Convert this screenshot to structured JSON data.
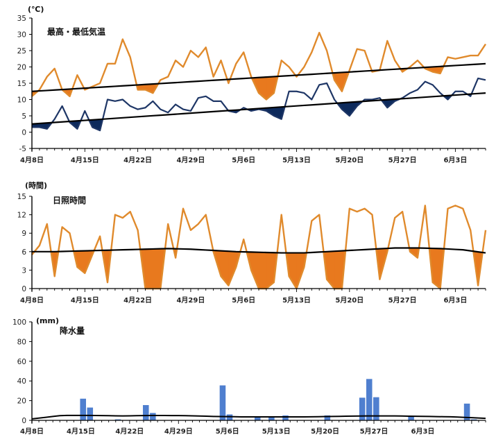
{
  "colors": {
    "high": "#e08a2c",
    "low": "#1e3666",
    "normal": "#000000",
    "above_fill": "#e8791e",
    "below_fill": "#0d2a5c",
    "precip": "#4f7fcf"
  },
  "chart_data": [
    {
      "type": "line",
      "title": "最高・最低気温",
      "ylabel": "(℃)",
      "ylim": [
        -5,
        35
      ],
      "yticks": [
        -5,
        0,
        5,
        10,
        15,
        20,
        25,
        30,
        35
      ],
      "x_start": "4月8日",
      "x_tick_labels": [
        "4月8日",
        "4月15日",
        "4月22日",
        "4月29日",
        "5月6日",
        "5月13日",
        "5月20日",
        "5月27日",
        "6月3日"
      ],
      "series": [
        {
          "values": [
            11,
            13,
            17,
            19.5,
            13,
            11,
            17.5,
            13,
            14,
            15,
            21,
            21,
            28.5,
            23,
            13,
            13,
            12,
            16,
            17,
            22,
            20,
            25,
            23,
            26,
            17,
            22,
            15,
            21,
            24.5,
            17,
            12,
            10,
            12,
            22,
            20,
            17,
            20,
            24.5,
            30.5,
            25,
            16,
            12.5,
            19,
            25.5,
            25,
            18.5,
            19,
            28,
            22,
            18.5,
            20,
            22,
            19.5,
            18.5,
            18,
            23,
            22.5,
            23,
            23.5,
            23.5,
            27
          ]
        },
        {
          "values": [
            1.5,
            1.5,
            1,
            4,
            8,
            3,
            1,
            6.5,
            1.5,
            0.5,
            10,
            9.5,
            10,
            8,
            7,
            7.5,
            9.5,
            7,
            6,
            8.5,
            7,
            6.5,
            10.5,
            11,
            9.5,
            9.5,
            6.5,
            6,
            7.5,
            6.5,
            7,
            6.5,
            5,
            4,
            12.5,
            12.5,
            12,
            10,
            14.5,
            15,
            10,
            7,
            5,
            8,
            10,
            10,
            10.5,
            7.5,
            9.5,
            10.5,
            12,
            13,
            15.5,
            14.5,
            12,
            10,
            12.5,
            12.5,
            11,
            16.5,
            16
          ]
        },
        {
          "values": [
            12.5,
            21
          ]
        },
        {
          "values": [
            2.5,
            12
          ]
        }
      ]
    },
    {
      "type": "line",
      "title": "日照時間",
      "ylabel": "(時間)",
      "ylim": [
        0,
        15
      ],
      "yticks": [
        0,
        3,
        6,
        9,
        12,
        15
      ],
      "x_tick_labels": [
        "4月8日",
        "4月15日",
        "4月22日",
        "4月29日",
        "5月6日",
        "5月13日",
        "5月20日",
        "5月27日",
        "6月3日"
      ],
      "series": [
        {
          "values": [
            5.5,
            7,
            10.5,
            2,
            10,
            9,
            3.5,
            2.5,
            5.5,
            8.5,
            1,
            12,
            11.5,
            12.5,
            9.5,
            0,
            0,
            0,
            10.5,
            5,
            13,
            9.5,
            10.5,
            12,
            6,
            2,
            0.5,
            3.5,
            8,
            3,
            0,
            0,
            1,
            12,
            2,
            0,
            3.5,
            11,
            12,
            1.5,
            0,
            0,
            13,
            12.5,
            13,
            12,
            1.5,
            6,
            11.5,
            12.5,
            6,
            5,
            13.5,
            1,
            0,
            13,
            13.5,
            13,
            9.5,
            0.5,
            9.5
          ]
        },
        {
          "values": [
            6,
            6,
            6.1,
            6.2,
            6.3,
            6.4,
            6.5,
            6.4,
            6.2,
            6,
            5.9,
            5.8,
            5.8,
            6,
            6.2,
            6.4,
            6.6,
            6.6,
            6.5,
            6.3,
            5.8
          ]
        }
      ]
    },
    {
      "type": "bar",
      "title": "降水量",
      "ylabel": "(mm)",
      "ylim": [
        0,
        100
      ],
      "yticks": [
        0,
        20,
        40,
        60,
        80,
        100
      ],
      "x_tick_labels": [
        "4月8日",
        "4月15日",
        "4月22日",
        "4月29日",
        "5月6日",
        "5月13日",
        "5月20日",
        "5月27日",
        "6月3日"
      ],
      "values": [
        0,
        0,
        0,
        0,
        0,
        0,
        0,
        22,
        13,
        0,
        0,
        0,
        1,
        0,
        0,
        0,
        15.5,
        7.5,
        0,
        0,
        0,
        0,
        0,
        0,
        0,
        0,
        0,
        35.5,
        6,
        0,
        0,
        0,
        3,
        0,
        3,
        0,
        5,
        0,
        0,
        0,
        0,
        0,
        5,
        0,
        0,
        0,
        0,
        23,
        42,
        23.5,
        0,
        0,
        0,
        0,
        4,
        0,
        0,
        0,
        0,
        0,
        0,
        0,
        17,
        1,
        0,
        0
      ],
      "normal_line": [
        1.5,
        5,
        5,
        4.5,
        5,
        4.8,
        4,
        3.5,
        3.5,
        3.5,
        4,
        4.5,
        4.5,
        4,
        3.5,
        2
      ]
    }
  ]
}
